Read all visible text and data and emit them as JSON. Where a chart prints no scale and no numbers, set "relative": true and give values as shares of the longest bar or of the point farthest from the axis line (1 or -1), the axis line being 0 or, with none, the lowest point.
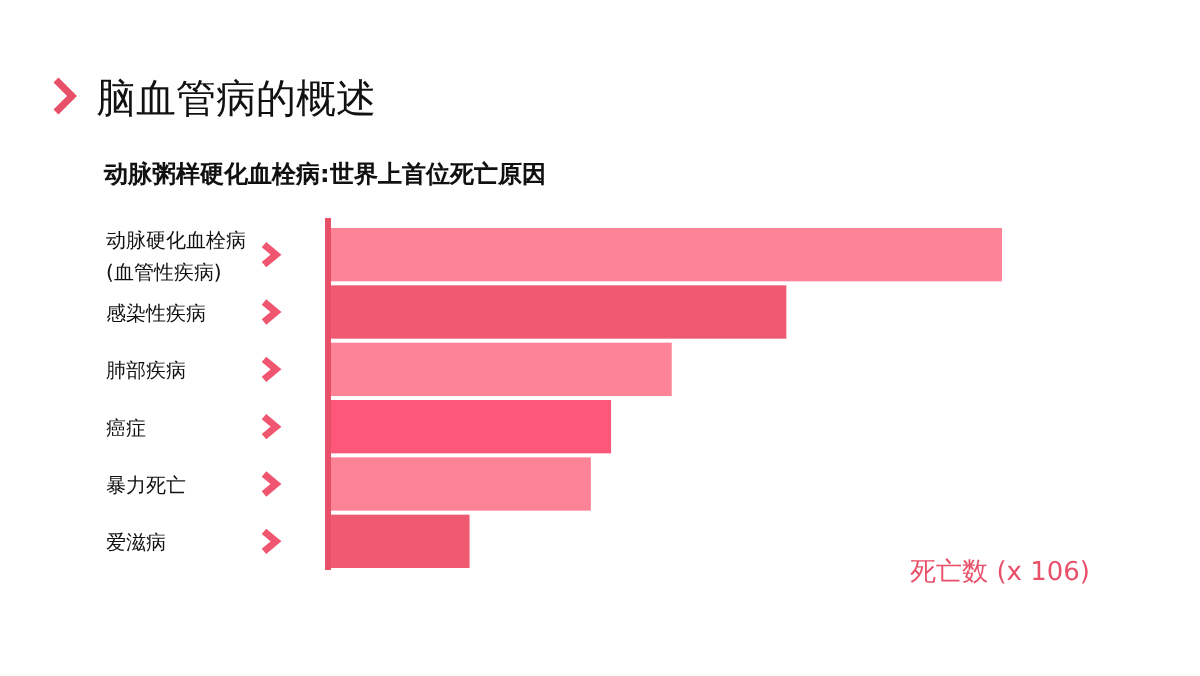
{
  "chart_data": {
    "type": "bar",
    "orientation": "horizontal",
    "relative": true,
    "title": "脑血管病的概述",
    "subtitle": "动脉粥样硬化血栓病:世界上首位死亡原因",
    "xlabel": "死亡数 (x 106)",
    "categories": [
      "动脉硬化血栓病\n(血管性疾病)",
      "感染性疾病",
      "肺部疾病",
      "癌症",
      "暴力死亡",
      "爱滋病"
    ],
    "values": [
      1,
      0.68,
      0.51,
      0.42,
      0.39,
      0.21
    ],
    "colors": [
      "#fd8497",
      "#ef5a70",
      "#fd8497",
      "#fd5779",
      "#fd8497",
      "#ef5a70"
    ]
  }
}
